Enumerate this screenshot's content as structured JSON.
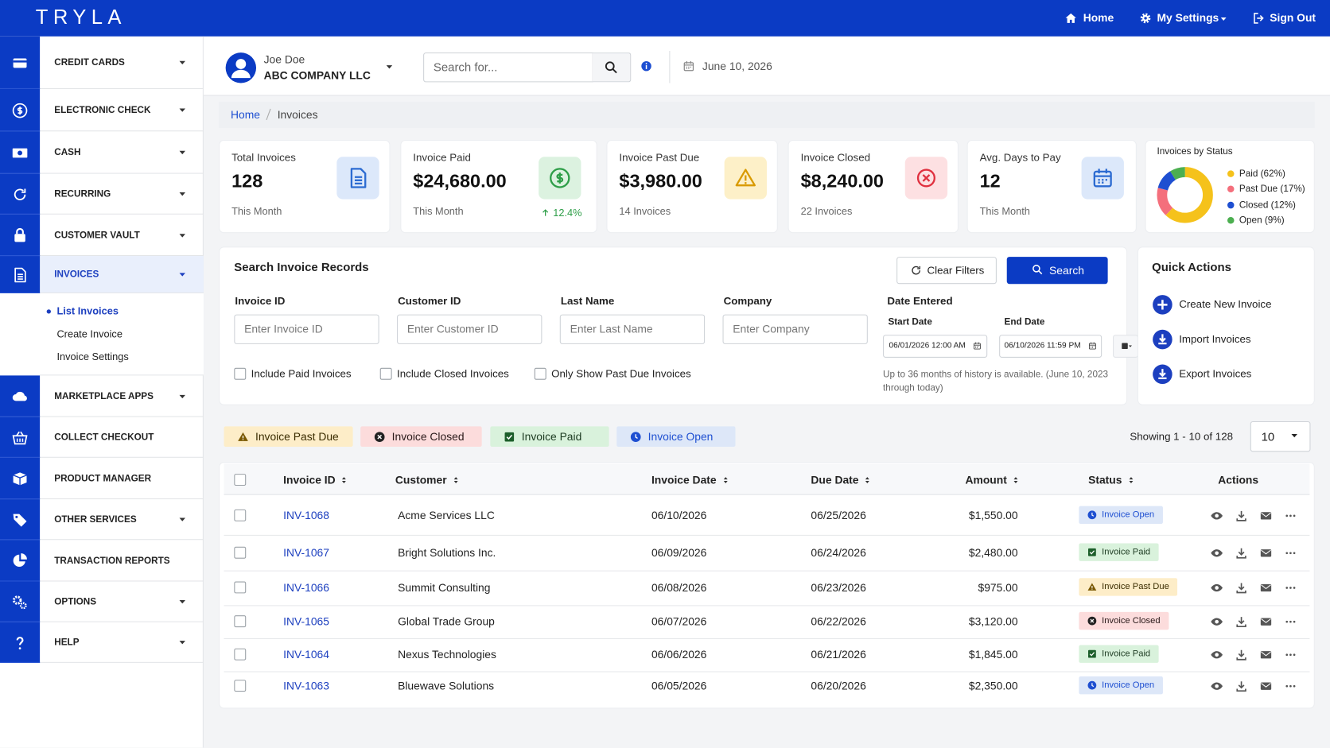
{
  "header": {
    "logo": "TRYLA",
    "nav": [
      "Home",
      "My Settings",
      "Sign Out"
    ]
  },
  "sidebar": {
    "items": [
      {
        "label": "CREDIT CARDS",
        "dropdown": true
      },
      {
        "label": "ELECTRONIC CHECK",
        "dropdown": true
      },
      {
        "label": "CASH",
        "dropdown": true
      },
      {
        "label": "RECURRING",
        "dropdown": true
      },
      {
        "label": "CUSTOMER VAULT",
        "dropdown": true
      },
      {
        "label": "INVOICES",
        "dropdown": true,
        "active": true
      },
      {
        "label": "MARKETPLACE APPS",
        "dropdown": true
      },
      {
        "label": "COLLECT CHECKOUT",
        "dropdown": false
      },
      {
        "label": "PRODUCT MANAGER",
        "dropdown": false
      },
      {
        "label": "OTHER SERVICES",
        "dropdown": true
      },
      {
        "label": "TRANSACTION REPORTS",
        "dropdown": false
      },
      {
        "label": "OPTIONS",
        "dropdown": true
      },
      {
        "label": "HELP",
        "dropdown": true
      }
    ],
    "submenu": [
      {
        "label": "List Invoices",
        "active": true
      },
      {
        "label": "Create Invoice",
        "active": false
      },
      {
        "label": "Invoice Settings",
        "active": false
      }
    ]
  },
  "topbar": {
    "user_name": "Joe Doe",
    "company": "ABC COMPANY LLC",
    "search_placeholder": "Search for...",
    "date": "June 10, 2026"
  },
  "breadcrumb": [
    "Home",
    "Invoices"
  ],
  "stats": [
    {
      "label": "Total Invoices",
      "value": "128",
      "note": "This Month",
      "tile": "#dce8fa",
      "icon_color": "#2c6bd1"
    },
    {
      "label": "Invoice Paid",
      "value": "$24,680.00",
      "note": "This Month",
      "trend": "12.4%",
      "tile": "#dcf2e0",
      "icon_color": "#2e9e48"
    },
    {
      "label": "Invoice Past Due",
      "value": "$3,980.00",
      "note": "14 Invoices",
      "tile": "#fdf0c8",
      "icon_color": "#d99a00"
    },
    {
      "label": "Invoice Closed",
      "value": "$8,240.00",
      "note": "22 Invoices",
      "tile": "#fde0e2",
      "icon_color": "#e0303f"
    },
    {
      "label": "Avg. Days to Pay",
      "value": "12",
      "note": "This Month",
      "tile": "#dce8fa",
      "icon_color": "#2c6bd1"
    }
  ],
  "donut": {
    "title": "Invoices by Status",
    "segments": [
      {
        "label": "Paid (62%)",
        "value": 62,
        "color": "#f5c21b"
      },
      {
        "label": "Past Due (17%)",
        "value": 17,
        "color": "#f46f7c"
      },
      {
        "label": "Closed (12%)",
        "value": 12,
        "color": "#1e4fd1"
      },
      {
        "label": "Open (9%)",
        "value": 9,
        "color": "#4caf50"
      }
    ]
  },
  "search": {
    "title": "Search Invoice Records",
    "clear_button": "Clear Filters",
    "search_button": "Search",
    "fields": [
      {
        "label": "Invoice ID",
        "placeholder": "Enter Invoice ID"
      },
      {
        "label": "Customer ID",
        "placeholder": "Enter Customer ID"
      },
      {
        "label": "Last Name",
        "placeholder": "Enter Last Name"
      },
      {
        "label": "Company",
        "placeholder": "Enter Company"
      }
    ],
    "date_label": "Date Entered",
    "start_label": "Start Date",
    "start_value": "06/01/2026 12:00 AM",
    "end_label": "End Date",
    "end_value": "06/10/2026 11:59 PM",
    "checkboxes": [
      "Include Paid Invoices",
      "Include Closed Invoices",
      "Only Show Past Due Invoices"
    ],
    "note": "Up to 36 months of history is available. (June 10, 2023 through today)"
  },
  "quick_actions": {
    "title": "Quick Actions",
    "items": [
      "Create New Invoice",
      "Import Invoices",
      "Export Invoices"
    ]
  },
  "status_chips": [
    {
      "label": "Invoice Past Due",
      "bg": "#fdedc8",
      "fg": "#3a2c00",
      "icon_color": "#7a5800"
    },
    {
      "label": "Invoice Closed",
      "bg": "#fcdcdc",
      "fg": "#2a1a1a",
      "icon_color": "#222222"
    },
    {
      "label": "Invoice Paid",
      "bg": "#d9f2dc",
      "fg": "#1d3b22",
      "icon_color": "#1c5e2a"
    },
    {
      "label": "Invoice Open",
      "bg": "#dde7f8",
      "fg": "#1e4fd1",
      "icon_color": "#1e4fd1"
    }
  ],
  "pagination": {
    "showing": "Showing 1 - 10 of 128",
    "per_page": "10"
  },
  "table": {
    "columns": [
      {
        "label": "Invoice ID",
        "sortable": true
      },
      {
        "label": "Customer",
        "sortable": true
      },
      {
        "label": "Invoice Date",
        "sortable": true
      },
      {
        "label": "Due Date",
        "sortable": true
      },
      {
        "label": "Amount",
        "sortable": true
      },
      {
        "label": "Status",
        "sortable": true
      },
      {
        "label": "Actions",
        "sortable": false
      }
    ],
    "rows": [
      [
        "INV-1068",
        "Acme Services LLC",
        "06/10/2026",
        "06/25/2026",
        "$1,550.00",
        "Invoice Open"
      ],
      [
        "INV-1067",
        "Bright Solutions Inc.",
        "06/09/2026",
        "06/24/2026",
        "$2,480.00",
        "Invoice Paid"
      ],
      [
        "INV-1066",
        "Summit Consulting",
        "06/08/2026",
        "06/23/2026",
        "$975.00",
        "Invoice Past Due"
      ],
      [
        "INV-1065",
        "Global Trade Group",
        "06/07/2026",
        "06/22/2026",
        "$3,120.00",
        "Invoice Closed"
      ],
      [
        "INV-1064",
        "Nexus Technologies",
        "06/06/2026",
        "06/21/2026",
        "$1,845.00",
        "Invoice Paid"
      ],
      [
        "INV-1063",
        "Bluewave Solutions",
        "06/05/2026",
        "06/20/2026",
        "$2,350.00",
        "Invoice Open"
      ]
    ]
  }
}
